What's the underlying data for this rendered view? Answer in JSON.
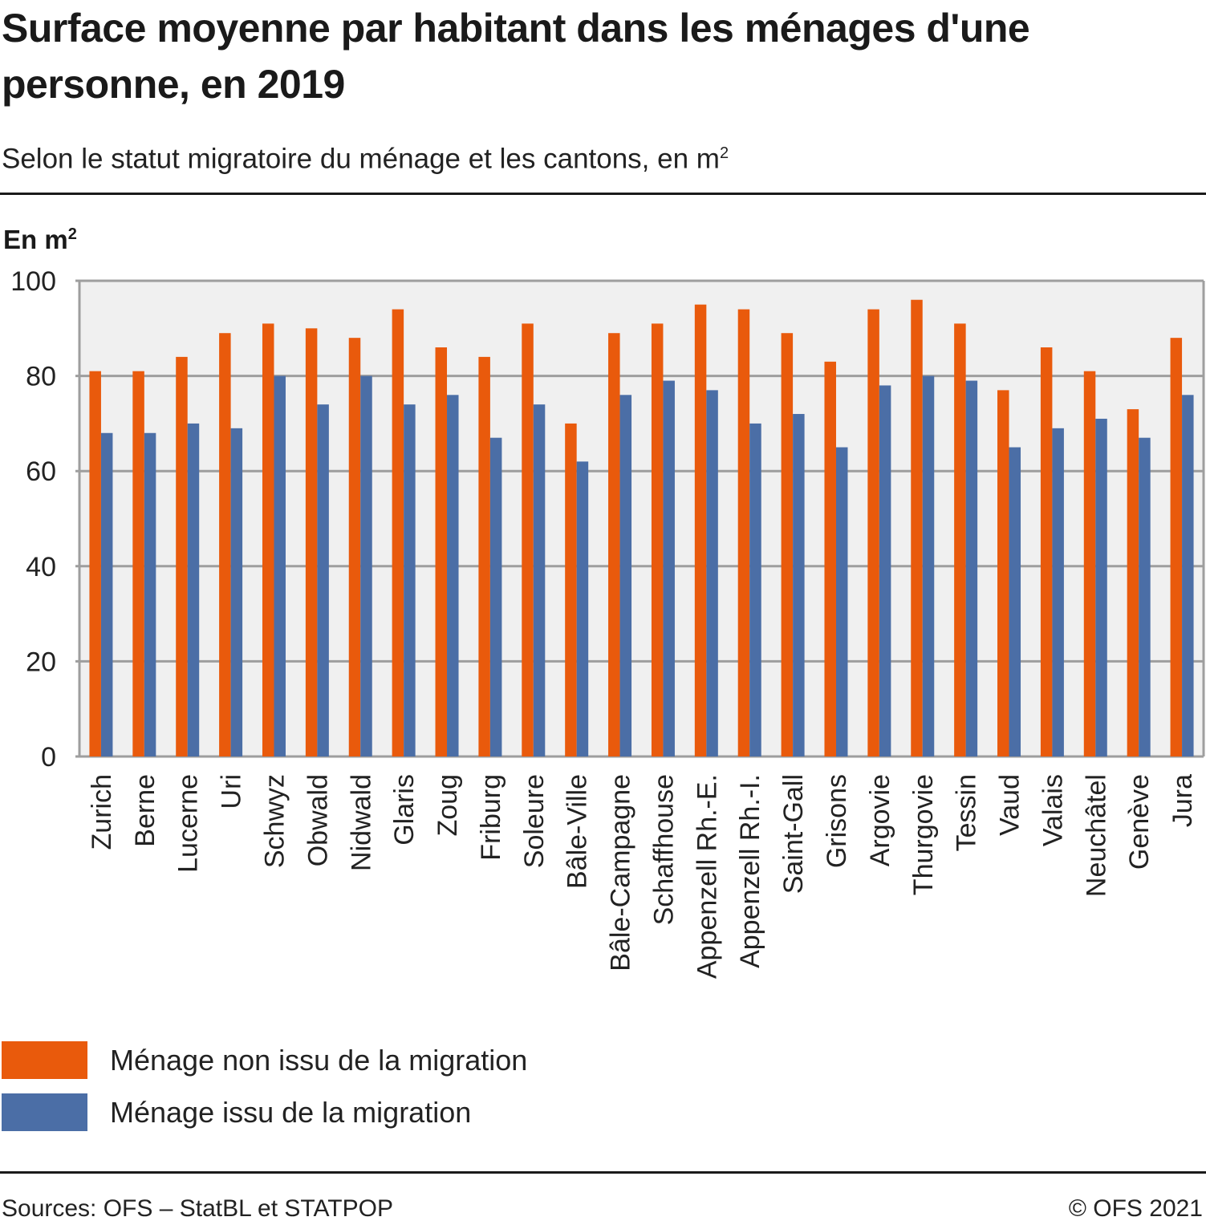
{
  "header": {
    "title": "Surface moyenne par habitant dans les ménages d'une personne, en 2019",
    "subtitle": "Selon le statut migratoire du ménage et les cantons, en m",
    "subtitle_sup": "2",
    "unit_label": "En m",
    "unit_sup": "2"
  },
  "legend": [
    {
      "label": "Ménage non issu de la migration",
      "color": "#e95a0c"
    },
    {
      "label": "Ménage issu de la migration",
      "color": "#4b6ea6"
    }
  ],
  "footer": {
    "source": "Sources: OFS – StatBL et STATPOP",
    "copyright": "© OFS 2021"
  },
  "colors": {
    "plot_background": "#f0f0f0",
    "gridline": "#9e9e9e",
    "text": "#222222"
  },
  "chart_data": {
    "type": "bar",
    "title": "Surface moyenne par habitant dans les ménages d'une personne, en 2019",
    "subtitle": "Selon le statut migratoire du ménage et les cantons, en m²",
    "xlabel": "",
    "ylabel": "En m²",
    "ylim": [
      0,
      100
    ],
    "yticks": [
      0,
      20,
      40,
      60,
      80,
      100
    ],
    "grid": true,
    "legend_position": "bottom-left",
    "categories": [
      "Zurich",
      "Berne",
      "Lucerne",
      "Uri",
      "Schwyz",
      "Obwald",
      "Nidwald",
      "Glaris",
      "Zoug",
      "Friburg",
      "Soleure",
      "Bâle-Ville",
      "Bâle-Campagne",
      "Schaffhouse",
      "Appenzell Rh.-E.",
      "Appenzell Rh.-I.",
      "Saint-Gall",
      "Grisons",
      "Argovie",
      "Thurgovie",
      "Tessin",
      "Vaud",
      "Valais",
      "Neuchâtel",
      "Genève",
      "Jura"
    ],
    "series": [
      {
        "name": "Ménage non issu de la migration",
        "color": "#e95a0c",
        "values": [
          81,
          81,
          84,
          89,
          91,
          90,
          88,
          94,
          86,
          84,
          91,
          70,
          89,
          91,
          95,
          94,
          89,
          83,
          94,
          96,
          91,
          77,
          86,
          81,
          73,
          88
        ]
      },
      {
        "name": "Ménage issu de la migration",
        "color": "#4b6ea6",
        "values": [
          68,
          68,
          70,
          69,
          80,
          74,
          80,
          74,
          76,
          67,
          74,
          62,
          76,
          79,
          77,
          70,
          72,
          65,
          78,
          80,
          79,
          65,
          69,
          71,
          67,
          76
        ]
      }
    ]
  }
}
